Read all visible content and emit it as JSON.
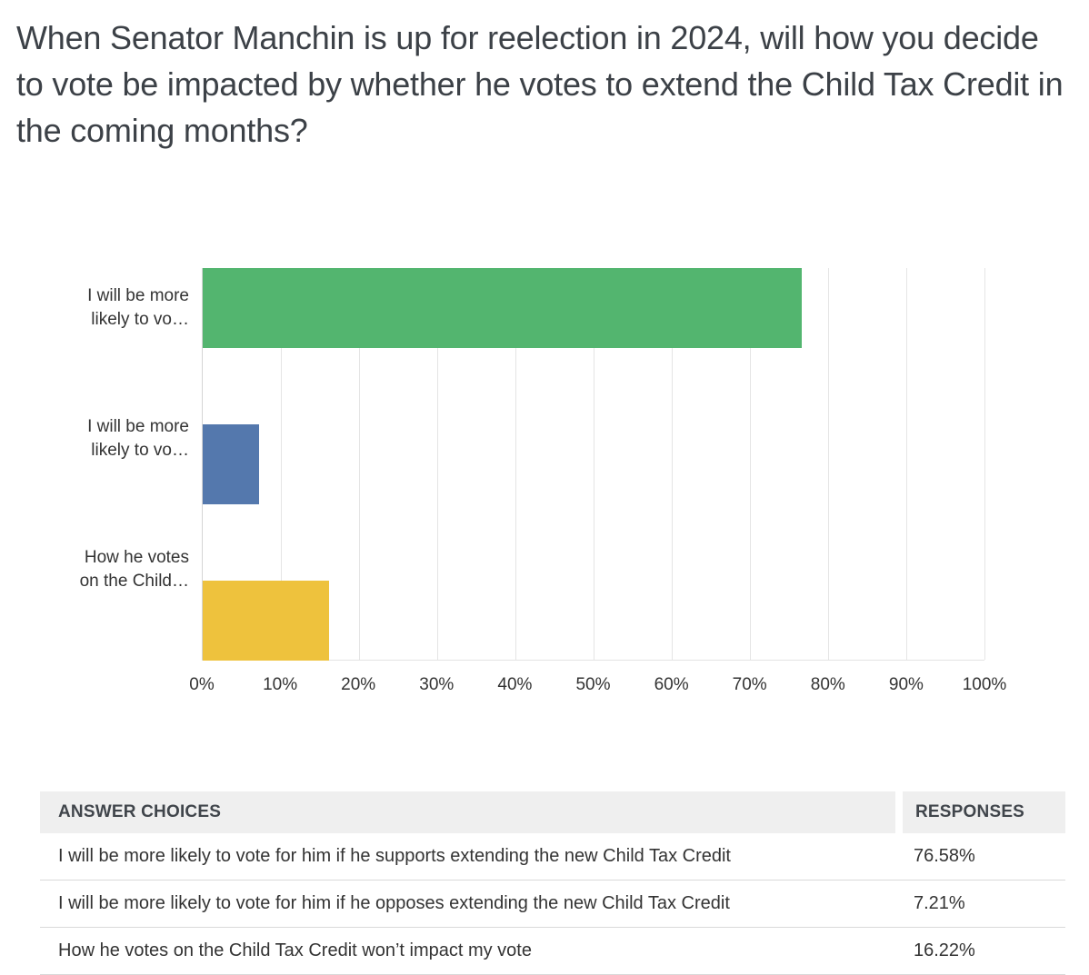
{
  "page": {
    "title": "When Senator Manchin is up for reelection in 2024, will how you decide to vote be impacted by whether he votes to extend the Child Tax Credit in the coming months?"
  },
  "chart_data": {
    "type": "bar",
    "orientation": "horizontal",
    "title": "",
    "xlabel": "",
    "ylabel": "",
    "grid": true,
    "categories": [
      "I will be more likely to vo…",
      "I will be more likely to vo…",
      "How he votes on the Child…"
    ],
    "values": [
      76.58,
      7.21,
      16.22
    ],
    "bar_colors": [
      "#53b56f",
      "#5478ad",
      "#eec23d"
    ],
    "xlim": [
      0,
      100
    ],
    "x_tick_step": 10,
    "x_tick_labels": [
      "0%",
      "10%",
      "20%",
      "30%",
      "40%",
      "50%",
      "60%",
      "70%",
      "80%",
      "90%",
      "100%"
    ]
  },
  "table": {
    "headers": [
      "ANSWER CHOICES",
      "RESPONSES"
    ],
    "rows": [
      {
        "answer": "I will be more likely to vote for him if he supports extending the new Child Tax Credit",
        "response": "76.58%"
      },
      {
        "answer": "I will be more likely to vote for him if he opposes extending the new Child Tax Credit",
        "response": "7.21%"
      },
      {
        "answer": "How he votes on the Child Tax Credit won’t impact my vote",
        "response": "16.22%"
      }
    ]
  }
}
